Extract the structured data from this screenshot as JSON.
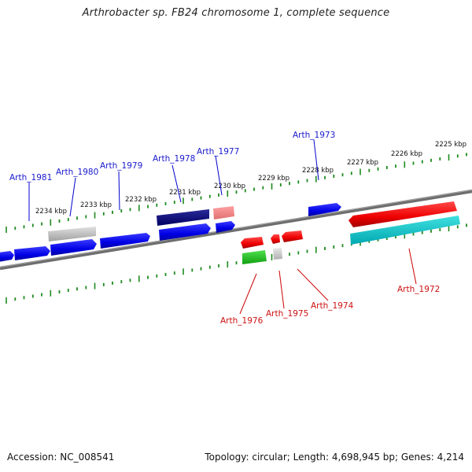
{
  "title": "Arthrobacter sp. FB24 chromosome 1, complete sequence",
  "footer": {
    "accession": "Accession: NC_008541",
    "stats": "Topology: circular; Length: 4,698,945 bp; Genes: 4,214"
  },
  "colors": {
    "backbone": "#7a7a7a",
    "tick": "#1e8a1e",
    "forward_label": "#1a1acc",
    "reverse_label": "#cc1111"
  },
  "scale_ticks": [
    "2225 kbp",
    "2226 kbp",
    "2227 kbp",
    "2228 kbp",
    "2229 kbp",
    "2230 kbp",
    "2231 kbp",
    "2232 kbp",
    "2233 kbp",
    "2234 kbp"
  ],
  "labels": {
    "forward": [
      "Arth_1973",
      "Arth_1977",
      "Arth_1978",
      "Arth_1979",
      "Arth_1980",
      "Arth_1981"
    ],
    "reverse": [
      "Arth_1972",
      "Arth_1974",
      "Arth_1975",
      "Arth_1976"
    ]
  }
}
